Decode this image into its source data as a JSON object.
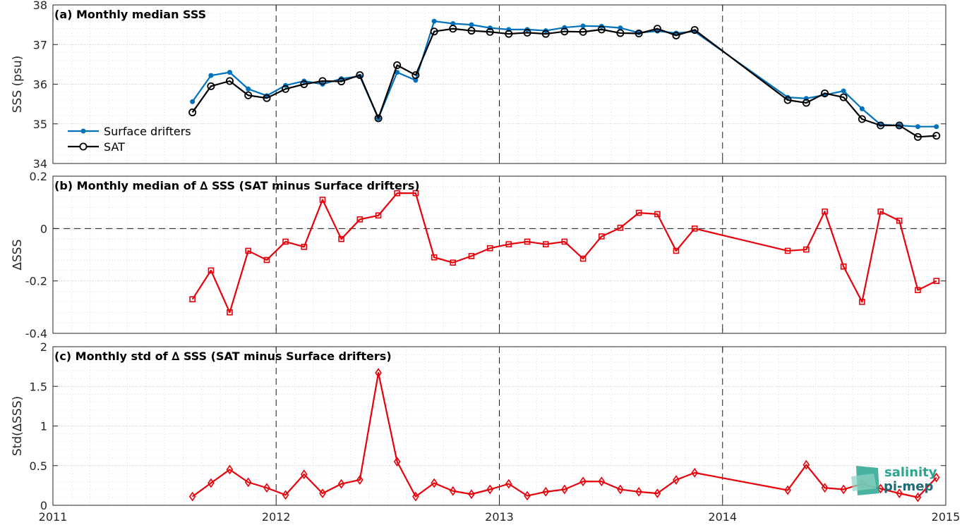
{
  "x_ticks": [
    "2011",
    "2012",
    "2013",
    "2014",
    "2015"
  ],
  "watermark": {
    "line1": "salinity",
    "line2": "pi-mep"
  },
  "colors": {
    "drifters": "#0072BD",
    "sat": "#000000",
    "delta": "#E8000B"
  },
  "chart_data": [
    {
      "type": "line",
      "title": "(a) Monthly median SSS",
      "ylabel": "SSS (psu)",
      "xlim": [
        2011,
        2015
      ],
      "ylim": [
        34,
        38
      ],
      "yticks": [
        "34",
        "35",
        "36",
        "37",
        "38"
      ],
      "grid": true,
      "legend": "left",
      "series": [
        {
          "name": "Surface drifters",
          "marker": "dot",
          "color": "#0072BD",
          "x": [
            2011.625,
            2011.708,
            2011.792,
            2011.875,
            2011.958,
            2012.042,
            2012.125,
            2012.208,
            2012.292,
            2012.375,
            2012.458,
            2012.542,
            2012.625,
            2012.708,
            2012.792,
            2012.875,
            2012.958,
            2013.042,
            2013.125,
            2013.208,
            2013.292,
            2013.375,
            2013.458,
            2013.542,
            2013.625,
            2013.708,
            2013.792,
            2013.875,
            2014.292,
            2014.375,
            2014.458,
            2014.542,
            2014.625,
            2014.708,
            2014.792,
            2014.875,
            2014.958
          ],
          "values": [
            35.56,
            36.22,
            36.3,
            35.88,
            35.71,
            35.97,
            36.08,
            36.0,
            36.14,
            36.2,
            35.14,
            36.3,
            36.1,
            37.59,
            37.53,
            37.5,
            37.42,
            37.38,
            37.38,
            37.35,
            37.43,
            37.47,
            37.46,
            37.42,
            37.3,
            37.34,
            37.29,
            37.33,
            35.67,
            35.64,
            35.73,
            35.83,
            35.38,
            34.98,
            34.96,
            34.93,
            34.93
          ]
        },
        {
          "name": "SAT",
          "marker": "circle",
          "color": "#000000",
          "x": [
            2011.625,
            2011.708,
            2011.792,
            2011.875,
            2011.958,
            2012.042,
            2012.125,
            2012.208,
            2012.292,
            2012.375,
            2012.458,
            2012.542,
            2012.625,
            2012.708,
            2012.792,
            2012.875,
            2012.958,
            2013.042,
            2013.125,
            2013.208,
            2013.292,
            2013.375,
            2013.458,
            2013.542,
            2013.625,
            2013.708,
            2013.792,
            2013.875,
            2014.292,
            2014.375,
            2014.458,
            2014.542,
            2014.625,
            2014.708,
            2014.792,
            2014.875,
            2014.958
          ],
          "values": [
            35.29,
            35.95,
            36.08,
            35.72,
            35.65,
            35.88,
            36.0,
            36.08,
            36.07,
            36.23,
            35.14,
            36.48,
            36.23,
            37.33,
            37.4,
            37.35,
            37.32,
            37.27,
            37.3,
            37.27,
            37.33,
            37.32,
            37.38,
            37.29,
            37.28,
            37.4,
            37.23,
            37.37,
            35.6,
            35.53,
            35.77,
            35.67,
            35.12,
            34.96,
            34.96,
            34.67,
            34.7
          ]
        }
      ]
    },
    {
      "type": "line",
      "title": "(b) Monthly median of ∆ SSS (SAT minus Surface drifters)",
      "ylabel": "∆SSS",
      "xlim": [
        2011,
        2015
      ],
      "ylim": [
        -0.4,
        0.2
      ],
      "yticks": [
        "-0.4",
        "-0.2",
        "0",
        "0.2"
      ],
      "zero_line": true,
      "grid": true,
      "series": [
        {
          "marker": "square",
          "color": "#E8000B",
          "x": [
            2011.625,
            2011.708,
            2011.792,
            2011.875,
            2011.958,
            2012.042,
            2012.125,
            2012.208,
            2012.292,
            2012.375,
            2012.458,
            2012.542,
            2012.625,
            2012.708,
            2012.792,
            2012.875,
            2012.958,
            2013.042,
            2013.125,
            2013.208,
            2013.292,
            2013.375,
            2013.458,
            2013.542,
            2013.625,
            2013.708,
            2013.792,
            2013.875,
            2014.292,
            2014.375,
            2014.458,
            2014.542,
            2014.625,
            2014.708,
            2014.792,
            2014.875,
            2014.958
          ],
          "values": [
            -0.27,
            -0.16,
            -0.32,
            -0.085,
            -0.12,
            -0.05,
            -0.07,
            0.11,
            -0.04,
            0.035,
            0.05,
            0.135,
            0.135,
            -0.11,
            -0.13,
            -0.105,
            -0.075,
            -0.06,
            -0.05,
            -0.06,
            -0.05,
            -0.115,
            -0.03,
            0.003,
            0.06,
            0.055,
            -0.085,
            0.0,
            -0.085,
            -0.08,
            0.065,
            -0.145,
            -0.28,
            0.065,
            0.03,
            -0.235,
            -0.2
          ]
        }
      ]
    },
    {
      "type": "line",
      "title": "(c) Monthly std of ∆ SSS (SAT minus Surface drifters)",
      "ylabel": "Std(∆SSS)",
      "xlim": [
        2011,
        2015
      ],
      "ylim": [
        0,
        2
      ],
      "yticks": [
        "0",
        "0.5",
        "1",
        "1.5",
        "2"
      ],
      "grid": true,
      "series": [
        {
          "marker": "diamond",
          "color": "#E8000B",
          "x": [
            2011.625,
            2011.708,
            2011.792,
            2011.875,
            2011.958,
            2012.042,
            2012.125,
            2012.208,
            2012.292,
            2012.375,
            2012.458,
            2012.542,
            2012.625,
            2012.708,
            2012.792,
            2012.875,
            2012.958,
            2013.042,
            2013.125,
            2013.208,
            2013.292,
            2013.375,
            2013.458,
            2013.542,
            2013.625,
            2013.708,
            2013.792,
            2013.875,
            2014.292,
            2014.375,
            2014.458,
            2014.542,
            2014.625,
            2014.708,
            2014.792,
            2014.875,
            2014.958
          ],
          "values": [
            0.11,
            0.28,
            0.45,
            0.29,
            0.22,
            0.13,
            0.39,
            0.15,
            0.27,
            0.32,
            1.67,
            0.55,
            0.11,
            0.28,
            0.18,
            0.14,
            0.2,
            0.27,
            0.12,
            0.17,
            0.2,
            0.3,
            0.3,
            0.2,
            0.17,
            0.15,
            0.32,
            0.41,
            0.19,
            0.51,
            0.22,
            0.2,
            0.27,
            0.21,
            0.15,
            0.1,
            0.35
          ]
        }
      ]
    }
  ]
}
